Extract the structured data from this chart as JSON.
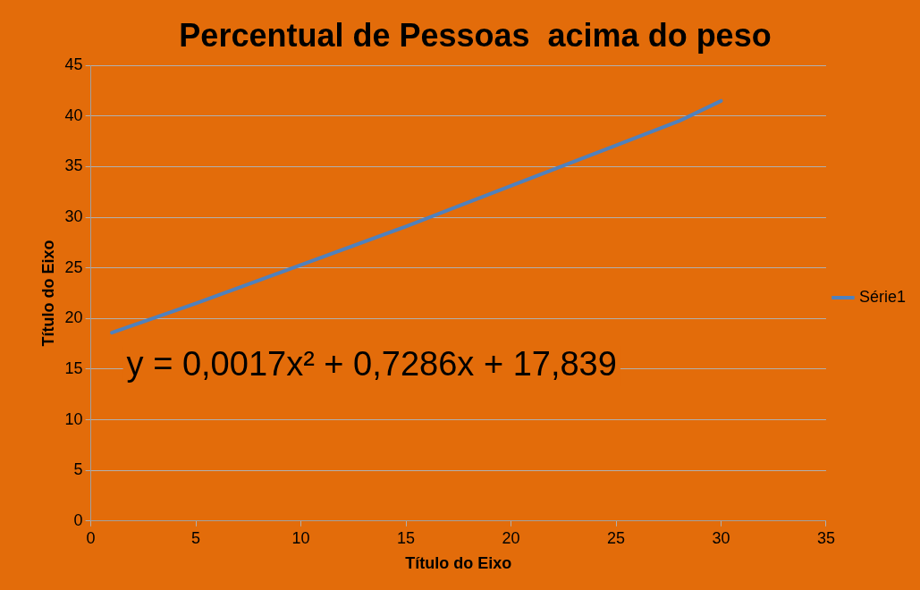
{
  "chart_data": {
    "type": "line",
    "title": "Percentual de Pessoas  acima do peso",
    "xlabel": "Título do Eixo",
    "ylabel": "Título do Eixo",
    "x": [
      1,
      5,
      10,
      15,
      20,
      25,
      28,
      30
    ],
    "series": [
      {
        "name": "Série1",
        "color": "#4f81bd",
        "values": [
          18.6,
          21.5,
          25.3,
          29.1,
          33.1,
          37.1,
          39.5,
          41.5
        ]
      }
    ],
    "xlim": [
      0,
      35
    ],
    "xticks": [
      0,
      5,
      10,
      15,
      20,
      25,
      30,
      35
    ],
    "ylim": [
      0,
      45
    ],
    "yticks": [
      0,
      5,
      10,
      15,
      20,
      25,
      30,
      35,
      40,
      45
    ],
    "grid": "y",
    "legend": "right",
    "marker": "none",
    "annotations": [
      "y = 0,0017x² + 0,7286x + 17,839"
    ]
  }
}
